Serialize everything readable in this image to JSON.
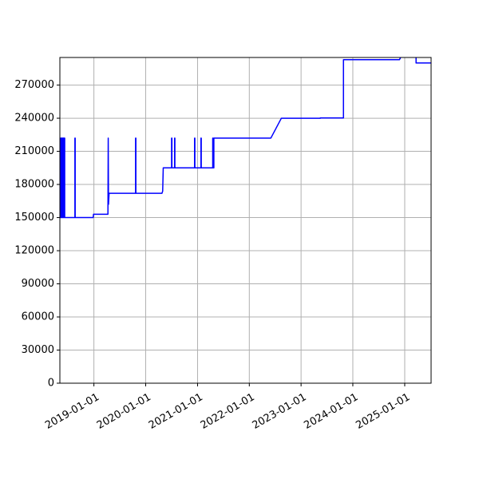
{
  "chart_data": {
    "type": "line",
    "title": "",
    "xlabel": "",
    "ylabel": "",
    "grid": true,
    "legend": "none",
    "colors": {
      "line": "#0000ff",
      "grid": "#b0b0b0",
      "axes": "#000000"
    },
    "xlim": [
      "2018-05-06",
      "2025-07-06"
    ],
    "ylim": [
      0,
      295000
    ],
    "x_ticks": [
      {
        "value": "2019-01-01",
        "label": "2019-01-01"
      },
      {
        "value": "2020-01-01",
        "label": "2020-01-01"
      },
      {
        "value": "2021-01-01",
        "label": "2021-01-01"
      },
      {
        "value": "2022-01-01",
        "label": "2022-01-01"
      },
      {
        "value": "2023-01-01",
        "label": "2023-01-01"
      },
      {
        "value": "2024-01-01",
        "label": "2024-01-01"
      },
      {
        "value": "2025-01-01",
        "label": "2025-01-01"
      }
    ],
    "y_ticks": [
      {
        "value": 0,
        "label": "0"
      },
      {
        "value": 30000,
        "label": "30000"
      },
      {
        "value": 60000,
        "label": "60000"
      },
      {
        "value": 90000,
        "label": "90000"
      },
      {
        "value": 120000,
        "label": "120000"
      },
      {
        "value": 150000,
        "label": "150000"
      },
      {
        "value": 180000,
        "label": "180000"
      },
      {
        "value": 210000,
        "label": "210000"
      },
      {
        "value": 240000,
        "label": "240000"
      },
      {
        "value": 270000,
        "label": "270000"
      }
    ],
    "series": [
      {
        "points": [
          [
            "2018-05-06",
            150000
          ],
          [
            "2018-05-12",
            150000
          ],
          [
            "2018-05-12",
            222000
          ],
          [
            "2018-05-16",
            222000
          ],
          [
            "2018-05-16",
            150000
          ],
          [
            "2018-05-20",
            150000
          ],
          [
            "2018-05-20",
            222000
          ],
          [
            "2018-05-24",
            222000
          ],
          [
            "2018-05-24",
            150000
          ],
          [
            "2018-05-28",
            150000
          ],
          [
            "2018-05-28",
            222000
          ],
          [
            "2018-06-01",
            222000
          ],
          [
            "2018-06-01",
            150000
          ],
          [
            "2018-06-05",
            150000
          ],
          [
            "2018-06-05",
            222000
          ],
          [
            "2018-06-09",
            222000
          ],
          [
            "2018-06-09",
            150000
          ],
          [
            "2018-08-20",
            150000
          ],
          [
            "2018-08-20",
            222000
          ],
          [
            "2018-08-22",
            222000
          ],
          [
            "2018-08-22",
            150000
          ],
          [
            "2018-12-27",
            150000
          ],
          [
            "2018-12-29",
            153000
          ],
          [
            "2019-04-10",
            153000
          ],
          [
            "2019-04-12",
            222000
          ],
          [
            "2019-04-14",
            162000
          ],
          [
            "2019-04-18",
            172000
          ],
          [
            "2019-10-22",
            172000
          ],
          [
            "2019-10-22",
            222000
          ],
          [
            "2019-10-24",
            222000
          ],
          [
            "2019-10-24",
            172000
          ],
          [
            "2020-04-25",
            172000
          ],
          [
            "2020-04-30",
            174000
          ],
          [
            "2020-05-04",
            195000
          ],
          [
            "2020-07-02",
            195000
          ],
          [
            "2020-07-02",
            222000
          ],
          [
            "2020-07-04",
            222000
          ],
          [
            "2020-07-04",
            195000
          ],
          [
            "2020-07-23",
            195000
          ],
          [
            "2020-07-23",
            222000
          ],
          [
            "2020-07-25",
            222000
          ],
          [
            "2020-07-25",
            195000
          ],
          [
            "2020-12-11",
            195000
          ],
          [
            "2020-12-11",
            222000
          ],
          [
            "2020-12-13",
            222000
          ],
          [
            "2020-12-13",
            195000
          ],
          [
            "2021-01-25",
            195000
          ],
          [
            "2021-01-25",
            222000
          ],
          [
            "2021-01-27",
            222000
          ],
          [
            "2021-01-27",
            195000
          ],
          [
            "2021-04-18",
            195000
          ],
          [
            "2021-04-18",
            222000
          ],
          [
            "2021-04-20",
            222000
          ],
          [
            "2021-04-20",
            195000
          ],
          [
            "2021-04-26",
            195000
          ],
          [
            "2021-04-26",
            222000
          ],
          [
            "2022-06-02",
            222000
          ],
          [
            "2022-08-15",
            240000
          ],
          [
            "2023-05-16",
            240000
          ],
          [
            "2023-05-16",
            240200
          ],
          [
            "2023-10-27",
            240200
          ],
          [
            "2023-10-27",
            293000
          ],
          [
            "2024-11-25",
            293000
          ],
          [
            "2024-12-07",
            296000
          ],
          [
            "2025-03-22",
            296000
          ],
          [
            "2025-03-22",
            290000
          ],
          [
            "2025-07-06",
            290000
          ]
        ]
      }
    ]
  }
}
